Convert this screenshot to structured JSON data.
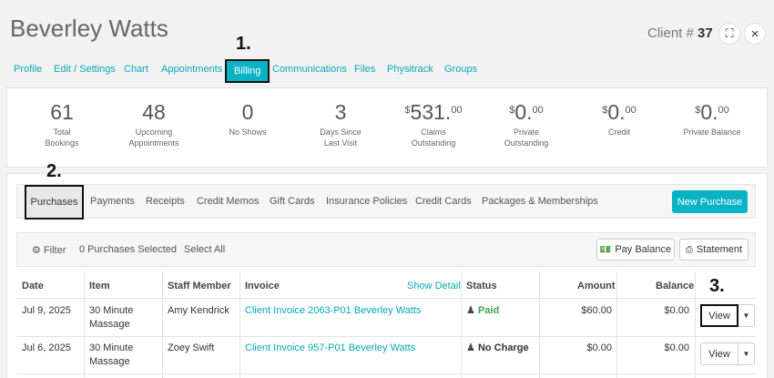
{
  "header": {
    "client_name": "Beverley Watts",
    "client_label": "Client #",
    "client_number": "37",
    "expand_icon": "⛶",
    "close_icon": "×"
  },
  "nav": {
    "tabs": [
      "Profile",
      "Edit / Settings",
      "Chart",
      "Appointments",
      "Billing",
      "Communications",
      "Files",
      "Physitrack",
      "Groups"
    ],
    "active": "Billing"
  },
  "markers": [
    "1.",
    "2.",
    "3."
  ],
  "stats": [
    {
      "value": "61",
      "label1": "Total",
      "label2": "Bookings"
    },
    {
      "value": "48",
      "label1": "Upcoming",
      "label2": "Appointments"
    },
    {
      "value": "0",
      "label1": "No Shows",
      "label2": ""
    },
    {
      "value": "3",
      "label1": "Days Since",
      "label2": "Last Visit"
    },
    {
      "currency": "$",
      "value": "531.",
      "cents": "00",
      "label1": "Claims",
      "label2": "Outstanding"
    },
    {
      "currency": "$",
      "value": "0.",
      "cents": "00",
      "label1": "Private",
      "label2": "Outstanding"
    },
    {
      "currency": "$",
      "value": "0.",
      "cents": "00",
      "label1": "Credit",
      "label2": ""
    },
    {
      "currency": "$",
      "value": "0.",
      "cents": "00",
      "label1": "Private Balance",
      "label2": ""
    }
  ],
  "subtabs": {
    "items": [
      "Purchases",
      "Payments",
      "Receipts",
      "Credit Memos",
      "Gift Cards",
      "Insurance Policies",
      "Credit Cards",
      "Packages & Memberships"
    ],
    "active": "Purchases",
    "new_button": "New Purchase"
  },
  "filterbar": {
    "filter_label": "Filter",
    "selected_label": "0 Purchases Selected",
    "select_all": "Select All",
    "pay_balance": "Pay Balance",
    "statement": "Statement"
  },
  "table": {
    "headers": [
      "Date",
      "Item",
      "Staff Member",
      "Invoice",
      "Status",
      "Amount",
      "Balance"
    ],
    "show_detail": "Show Detail",
    "rows": [
      {
        "date": "Jul 9, 2025",
        "item1": "30 Minute",
        "item2": "Massage",
        "staff": "Amy Kendrick",
        "invoice": "Client Invoice 2063-P01 Beverley Watts",
        "status": "Paid",
        "amount": "$60.00",
        "balance": "$0.00",
        "action": "View"
      },
      {
        "date": "Jul 6, 2025",
        "item1": "30 Minute",
        "item2": "Massage",
        "staff": "Zoey Swift",
        "invoice": "Client Invoice 957-P01 Beverley Watts",
        "status": "No Charge",
        "amount": "$0.00",
        "balance": "$0.00",
        "action": "View"
      }
    ]
  },
  "colors": {
    "accent": "#0ab3c4",
    "paid": "#3aa64a"
  }
}
